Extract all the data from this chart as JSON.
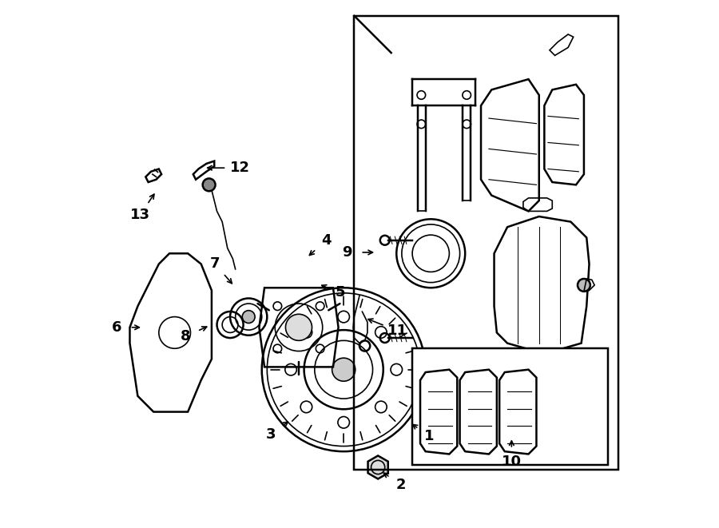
{
  "bg_color": "#ffffff",
  "line_color": "#000000",
  "line_width": 1.2,
  "label_fontsize": 13,
  "fig_width": 9.0,
  "fig_height": 6.61
}
